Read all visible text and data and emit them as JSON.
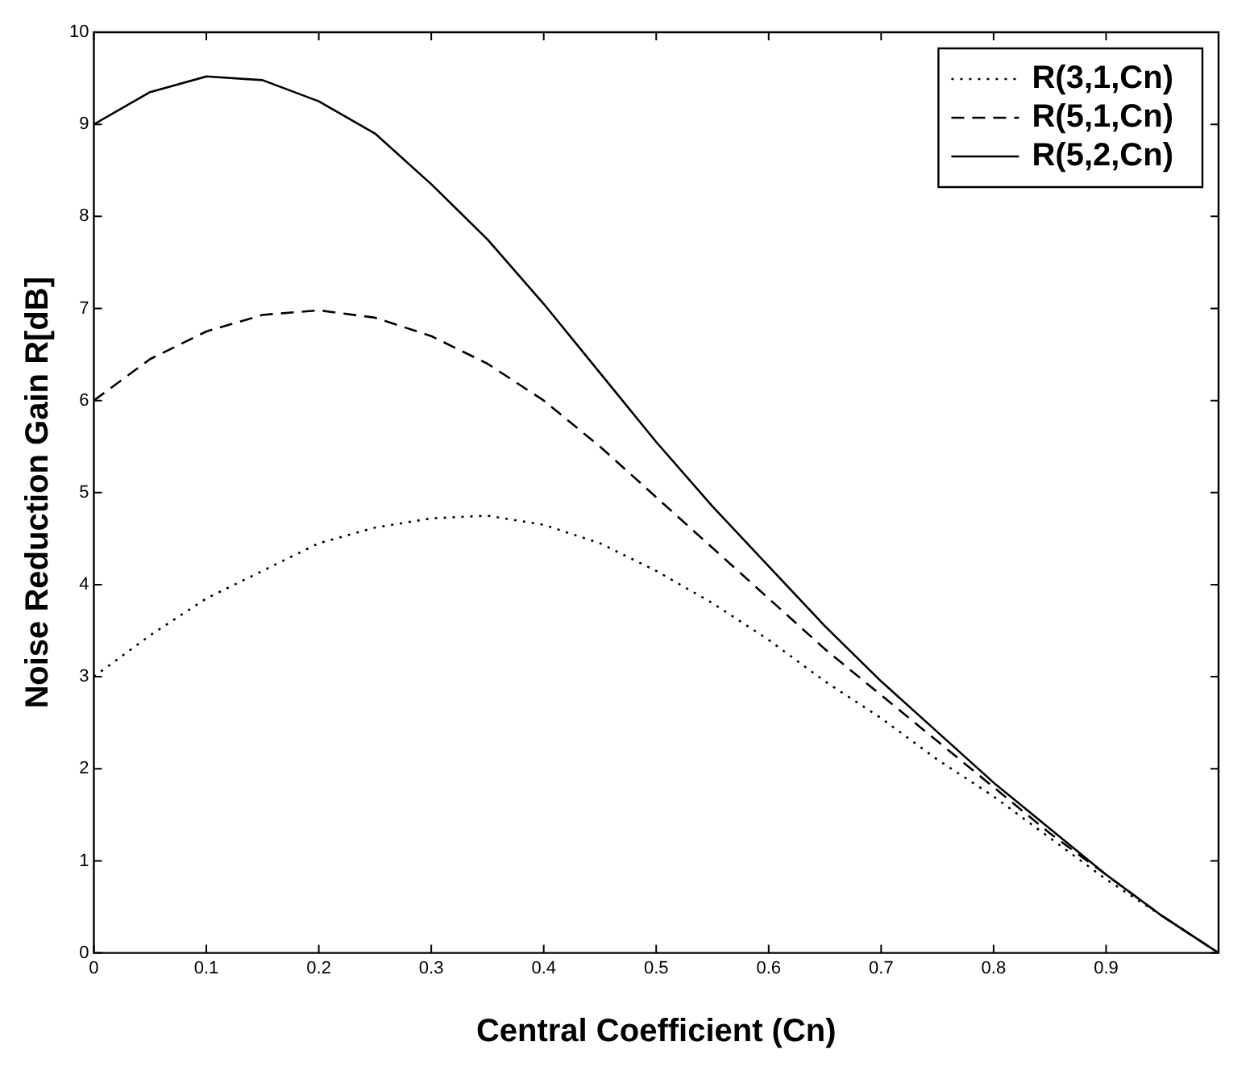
{
  "chart_data": {
    "type": "line",
    "xlabel": "Central Coefficient (Cn)",
    "ylabel": "Noise Reduction Gain R[dB]",
    "x": [
      0,
      0.05,
      0.1,
      0.15,
      0.2,
      0.25,
      0.3,
      0.35,
      0.4,
      0.45,
      0.5,
      0.55,
      0.6,
      0.65,
      0.7,
      0.75,
      0.8,
      0.85,
      0.9,
      0.95,
      1
    ],
    "series": [
      {
        "name": "R(3,1,Cn)",
        "color": "#000000",
        "line_style": "dotted",
        "values": [
          3.0,
          3.45,
          3.85,
          4.15,
          4.45,
          4.62,
          4.72,
          4.75,
          4.65,
          4.45,
          4.15,
          3.8,
          3.4,
          2.95,
          2.55,
          2.1,
          1.7,
          1.25,
          0.8,
          0.4,
          0
        ]
      },
      {
        "name": "R(5,1,Cn)",
        "color": "#000000",
        "line_style": "dashed",
        "values": [
          6.0,
          6.45,
          6.75,
          6.93,
          6.98,
          6.9,
          6.7,
          6.4,
          6.0,
          5.5,
          4.95,
          4.4,
          3.85,
          3.3,
          2.8,
          2.3,
          1.8,
          1.3,
          0.85,
          0.4,
          0
        ]
      },
      {
        "name": "R(5,2,Cn)",
        "color": "#000000",
        "line_style": "solid",
        "values": [
          9.0,
          9.35,
          9.52,
          9.48,
          9.25,
          8.9,
          8.35,
          7.75,
          7.05,
          6.3,
          5.55,
          4.85,
          4.2,
          3.55,
          2.95,
          2.4,
          1.85,
          1.35,
          0.85,
          0.4,
          0
        ]
      }
    ],
    "xlim": [
      0,
      1
    ],
    "xticks": [
      0,
      0.1,
      0.2,
      0.3,
      0.4,
      0.5,
      0.6,
      0.7,
      0.8,
      0.9
    ],
    "ylim": [
      0,
      10
    ],
    "yticks": [
      0,
      1,
      2,
      3,
      4,
      5,
      6,
      7,
      8,
      9,
      10
    ],
    "grid": false,
    "legend": "top right",
    "marker": "none"
  }
}
